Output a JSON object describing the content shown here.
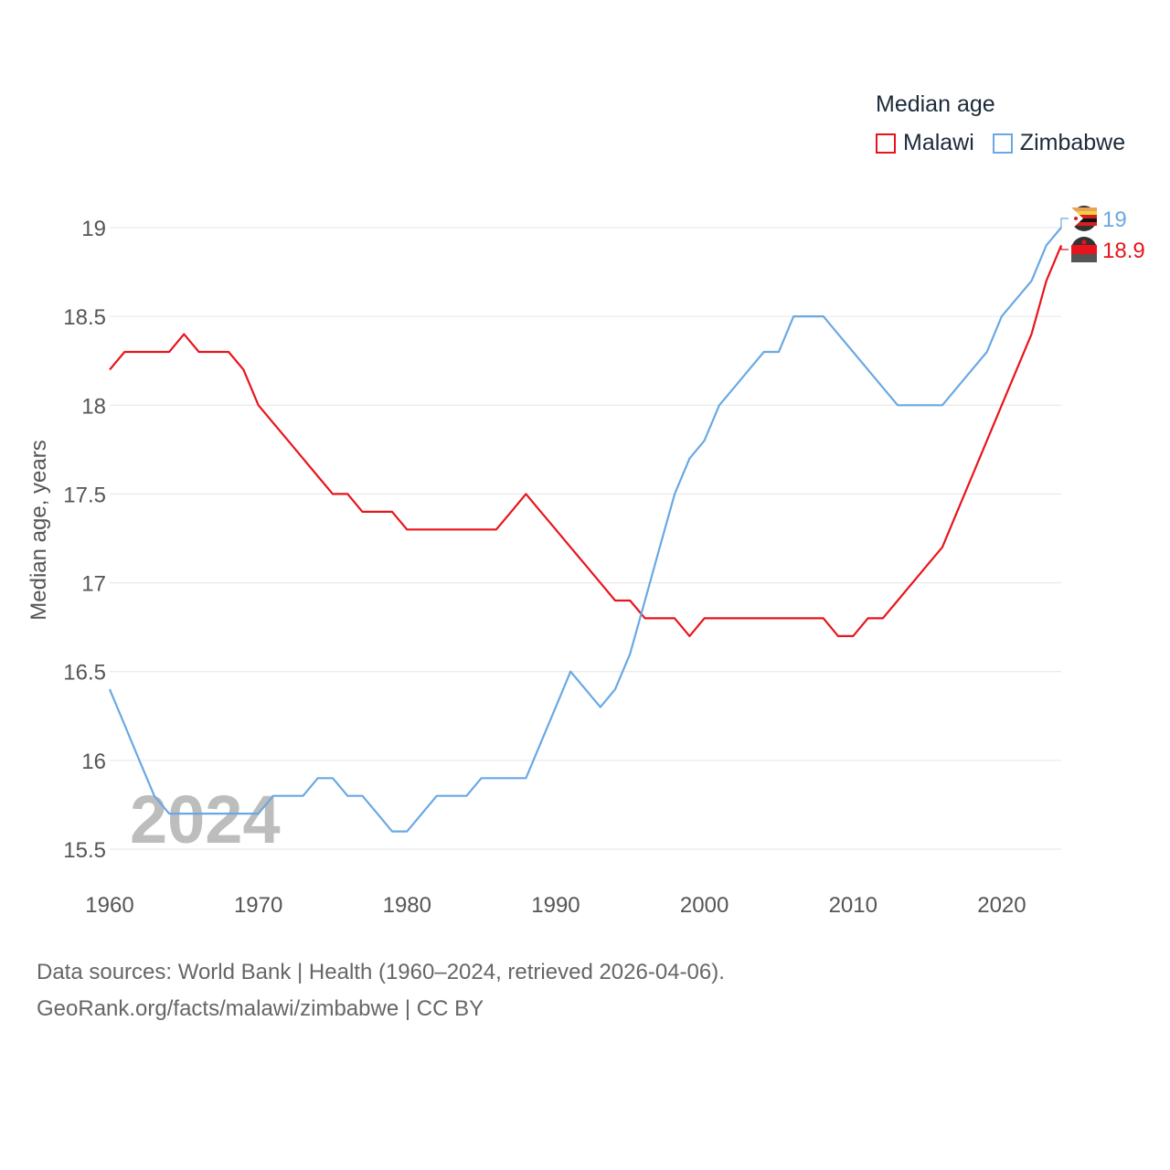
{
  "chart_data": {
    "type": "line",
    "title": "Median age",
    "ylabel": "Median age, years",
    "xlabel": "",
    "xlim": [
      1960,
      2024
    ],
    "ylim": [
      15.5,
      19
    ],
    "x_ticks": [
      1960,
      1970,
      1980,
      1990,
      2000,
      2010,
      2020
    ],
    "y_ticks": [
      15.5,
      16,
      16.5,
      17,
      17.5,
      18,
      18.5,
      19
    ],
    "grid": true,
    "legend_position": "top-right",
    "year_watermark": "2024",
    "series": [
      {
        "name": "Malawi",
        "color": "#e8141c",
        "end_label": "18.9",
        "flag_icon": "malawi-flag-icon",
        "x": [
          1960,
          1961,
          1962,
          1963,
          1964,
          1965,
          1966,
          1967,
          1968,
          1969,
          1970,
          1971,
          1972,
          1973,
          1974,
          1975,
          1976,
          1977,
          1978,
          1979,
          1980,
          1981,
          1982,
          1983,
          1984,
          1985,
          1986,
          1987,
          1988,
          1989,
          1990,
          1991,
          1992,
          1993,
          1994,
          1995,
          1996,
          1997,
          1998,
          1999,
          2000,
          2001,
          2002,
          2003,
          2004,
          2005,
          2006,
          2007,
          2008,
          2009,
          2010,
          2011,
          2012,
          2013,
          2014,
          2015,
          2016,
          2017,
          2018,
          2019,
          2020,
          2021,
          2022,
          2023,
          2024
        ],
        "values": [
          18.2,
          18.3,
          18.3,
          18.3,
          18.3,
          18.4,
          18.3,
          18.3,
          18.3,
          18.2,
          18.0,
          17.9,
          17.8,
          17.7,
          17.6,
          17.5,
          17.5,
          17.4,
          17.4,
          17.4,
          17.3,
          17.3,
          17.3,
          17.3,
          17.3,
          17.3,
          17.3,
          17.4,
          17.5,
          17.4,
          17.3,
          17.2,
          17.1,
          17.0,
          16.9,
          16.9,
          16.8,
          16.8,
          16.8,
          16.7,
          16.8,
          16.8,
          16.8,
          16.8,
          16.8,
          16.8,
          16.8,
          16.8,
          16.8,
          16.7,
          16.7,
          16.8,
          16.8,
          16.9,
          17.0,
          17.1,
          17.2,
          17.4,
          17.6,
          17.8,
          18.0,
          18.2,
          18.4,
          18.7,
          18.9
        ]
      },
      {
        "name": "Zimbabwe",
        "color": "#6aa8e4",
        "end_label": "19",
        "flag_icon": "zimbabwe-flag-icon",
        "x": [
          1960,
          1961,
          1962,
          1963,
          1964,
          1965,
          1966,
          1967,
          1968,
          1969,
          1970,
          1971,
          1972,
          1973,
          1974,
          1975,
          1976,
          1977,
          1978,
          1979,
          1980,
          1981,
          1982,
          1983,
          1984,
          1985,
          1986,
          1987,
          1988,
          1989,
          1990,
          1991,
          1992,
          1993,
          1994,
          1995,
          1996,
          1997,
          1998,
          1999,
          2000,
          2001,
          2002,
          2003,
          2004,
          2005,
          2006,
          2007,
          2008,
          2009,
          2010,
          2011,
          2012,
          2013,
          2014,
          2015,
          2016,
          2017,
          2018,
          2019,
          2020,
          2021,
          2022,
          2023,
          2024
        ],
        "values": [
          16.4,
          16.2,
          16.0,
          15.8,
          15.7,
          15.7,
          15.7,
          15.7,
          15.7,
          15.7,
          15.7,
          15.8,
          15.8,
          15.8,
          15.9,
          15.9,
          15.8,
          15.8,
          15.7,
          15.6,
          15.6,
          15.7,
          15.8,
          15.8,
          15.8,
          15.9,
          15.9,
          15.9,
          15.9,
          16.1,
          16.3,
          16.5,
          16.4,
          16.3,
          16.4,
          16.6,
          16.9,
          17.2,
          17.5,
          17.7,
          17.8,
          18.0,
          18.1,
          18.2,
          18.3,
          18.3,
          18.5,
          18.5,
          18.5,
          18.4,
          18.3,
          18.2,
          18.1,
          18.0,
          18.0,
          18.0,
          18.0,
          18.1,
          18.2,
          18.3,
          18.5,
          18.6,
          18.7,
          18.9,
          19.0
        ]
      }
    ]
  },
  "legend": {
    "title": "Median age",
    "items": [
      {
        "label": "Malawi",
        "color": "#e8141c"
      },
      {
        "label": "Zimbabwe",
        "color": "#6aa8e4"
      }
    ]
  },
  "footer": {
    "sources": "Data sources: World Bank | Health (1960–2024, retrieved 2026-04-06).",
    "credit": "GeoRank.org/facts/malawi/zimbabwe | CC BY"
  }
}
